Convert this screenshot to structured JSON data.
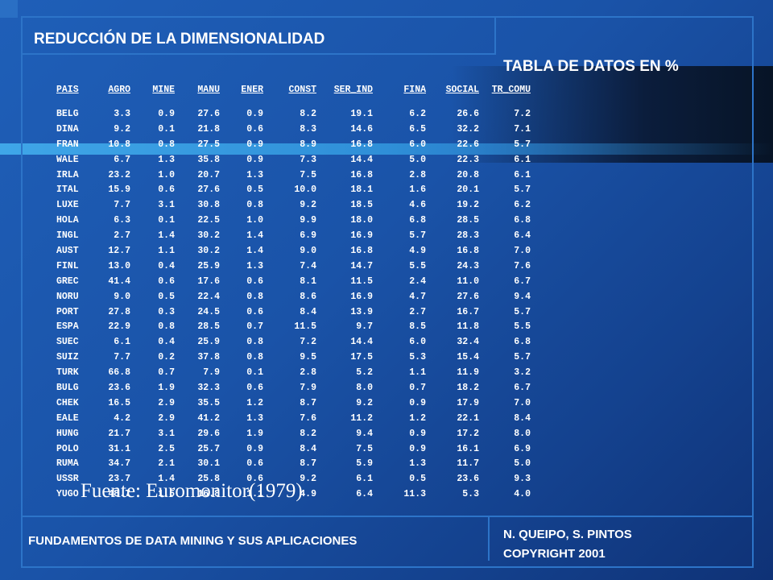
{
  "header": {
    "title": "REDUCCIÓN DE LA DIMENSIONALIDAD",
    "subtitle": "TABLA DE DATOS EN %"
  },
  "table": {
    "columns": [
      "PAIS",
      "AGRO",
      "MINE",
      "MANU",
      "ENER",
      "CONST",
      "SER_IND",
      "FINA",
      "SOCIAL",
      "TR_COMU"
    ],
    "rows": [
      [
        "BELG",
        "3.3",
        "0.9",
        "27.6",
        "0.9",
        "8.2",
        "19.1",
        "6.2",
        "26.6",
        "7.2"
      ],
      [
        "DINA",
        "9.2",
        "0.1",
        "21.8",
        "0.6",
        "8.3",
        "14.6",
        "6.5",
        "32.2",
        "7.1"
      ],
      [
        "FRAN",
        "10.8",
        "0.8",
        "27.5",
        "0.9",
        "8.9",
        "16.8",
        "6.0",
        "22.6",
        "5.7"
      ],
      [
        "WALE",
        "6.7",
        "1.3",
        "35.8",
        "0.9",
        "7.3",
        "14.4",
        "5.0",
        "22.3",
        "6.1"
      ],
      [
        "IRLA",
        "23.2",
        "1.0",
        "20.7",
        "1.3",
        "7.5",
        "16.8",
        "2.8",
        "20.8",
        "6.1"
      ],
      [
        "ITAL",
        "15.9",
        "0.6",
        "27.6",
        "0.5",
        "10.0",
        "18.1",
        "1.6",
        "20.1",
        "5.7"
      ],
      [
        "LUXE",
        "7.7",
        "3.1",
        "30.8",
        "0.8",
        "9.2",
        "18.5",
        "4.6",
        "19.2",
        "6.2"
      ],
      [
        "HOLA",
        "6.3",
        "0.1",
        "22.5",
        "1.0",
        "9.9",
        "18.0",
        "6.8",
        "28.5",
        "6.8"
      ],
      [
        "INGL",
        "2.7",
        "1.4",
        "30.2",
        "1.4",
        "6.9",
        "16.9",
        "5.7",
        "28.3",
        "6.4"
      ],
      [
        "AUST",
        "12.7",
        "1.1",
        "30.2",
        "1.4",
        "9.0",
        "16.8",
        "4.9",
        "16.8",
        "7.0"
      ],
      [
        "FINL",
        "13.0",
        "0.4",
        "25.9",
        "1.3",
        "7.4",
        "14.7",
        "5.5",
        "24.3",
        "7.6"
      ],
      [
        "GREC",
        "41.4",
        "0.6",
        "17.6",
        "0.6",
        "8.1",
        "11.5",
        "2.4",
        "11.0",
        "6.7"
      ],
      [
        "NORU",
        "9.0",
        "0.5",
        "22.4",
        "0.8",
        "8.6",
        "16.9",
        "4.7",
        "27.6",
        "9.4"
      ],
      [
        "PORT",
        "27.8",
        "0.3",
        "24.5",
        "0.6",
        "8.4",
        "13.9",
        "2.7",
        "16.7",
        "5.7"
      ],
      [
        "ESPA",
        "22.9",
        "0.8",
        "28.5",
        "0.7",
        "11.5",
        "9.7",
        "8.5",
        "11.8",
        "5.5"
      ],
      [
        "SUEC",
        "6.1",
        "0.4",
        "25.9",
        "0.8",
        "7.2",
        "14.4",
        "6.0",
        "32.4",
        "6.8"
      ],
      [
        "SUIZ",
        "7.7",
        "0.2",
        "37.8",
        "0.8",
        "9.5",
        "17.5",
        "5.3",
        "15.4",
        "5.7"
      ],
      [
        "TURK",
        "66.8",
        "0.7",
        "7.9",
        "0.1",
        "2.8",
        "5.2",
        "1.1",
        "11.9",
        "3.2"
      ],
      [
        "BULG",
        "23.6",
        "1.9",
        "32.3",
        "0.6",
        "7.9",
        "8.0",
        "0.7",
        "18.2",
        "6.7"
      ],
      [
        "CHEK",
        "16.5",
        "2.9",
        "35.5",
        "1.2",
        "8.7",
        "9.2",
        "0.9",
        "17.9",
        "7.0"
      ],
      [
        "EALE",
        "4.2",
        "2.9",
        "41.2",
        "1.3",
        "7.6",
        "11.2",
        "1.2",
        "22.1",
        "8.4"
      ],
      [
        "HUNG",
        "21.7",
        "3.1",
        "29.6",
        "1.9",
        "8.2",
        "9.4",
        "0.9",
        "17.2",
        "8.0"
      ],
      [
        "POLO",
        "31.1",
        "2.5",
        "25.7",
        "0.9",
        "8.4",
        "7.5",
        "0.9",
        "16.1",
        "6.9"
      ],
      [
        "RUMA",
        "34.7",
        "2.1",
        "30.1",
        "0.6",
        "8.7",
        "5.9",
        "1.3",
        "11.7",
        "5.0"
      ],
      [
        "USSR",
        "23.7",
        "1.4",
        "25.8",
        "0.6",
        "9.2",
        "6.1",
        "0.5",
        "23.6",
        "9.3"
      ],
      [
        "YUGO",
        "48.7",
        "1.5",
        "16.8",
        "1.1",
        "4.9",
        "6.4",
        "11.3",
        "5.3",
        "4.0"
      ]
    ]
  },
  "source": "Fuente: Euromonitor(1979)",
  "footer": {
    "left": "FUNDAMENTOS DE DATA MINING Y SUS APLICACIONES",
    "right_line1": "N. QUEIPO, S. PINTOS",
    "right_line2": "COPYRIGHT 2001"
  }
}
